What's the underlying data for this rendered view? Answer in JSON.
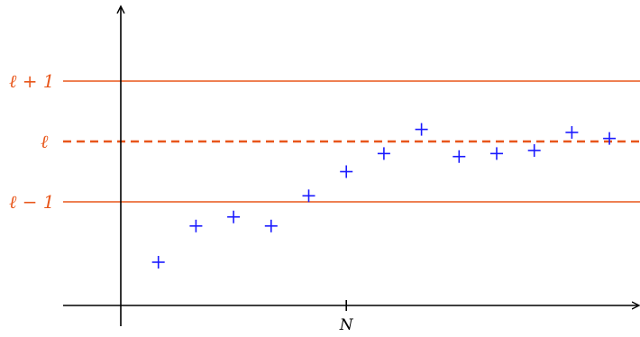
{
  "colors": {
    "axis": "#000000",
    "level": "#e8561a",
    "points": "#1a1aff"
  },
  "labels": {
    "upper": "ℓ + 1",
    "limit": "ℓ",
    "lower": "ℓ − 1",
    "n_tick": "N"
  },
  "sequence": {
    "marker": "+",
    "points": [
      {
        "n": 1,
        "u": -2.0
      },
      {
        "n": 2,
        "u": -1.4
      },
      {
        "n": 3,
        "u": -1.25
      },
      {
        "n": 4,
        "u": -1.4
      },
      {
        "n": 5,
        "u": -0.9
      },
      {
        "n": 6,
        "u": -0.5
      },
      {
        "n": 7,
        "u": -0.2
      },
      {
        "n": 8,
        "u": 0.2
      },
      {
        "n": 9,
        "u": -0.25
      },
      {
        "n": 10,
        "u": -0.2
      },
      {
        "n": 11,
        "u": -0.15
      },
      {
        "n": 12,
        "u": 0.15
      },
      {
        "n": 13,
        "u": 0.05
      }
    ],
    "n_tick_value": 6
  },
  "levels": {
    "upper": 1,
    "limit": 0,
    "lower": -1
  }
}
